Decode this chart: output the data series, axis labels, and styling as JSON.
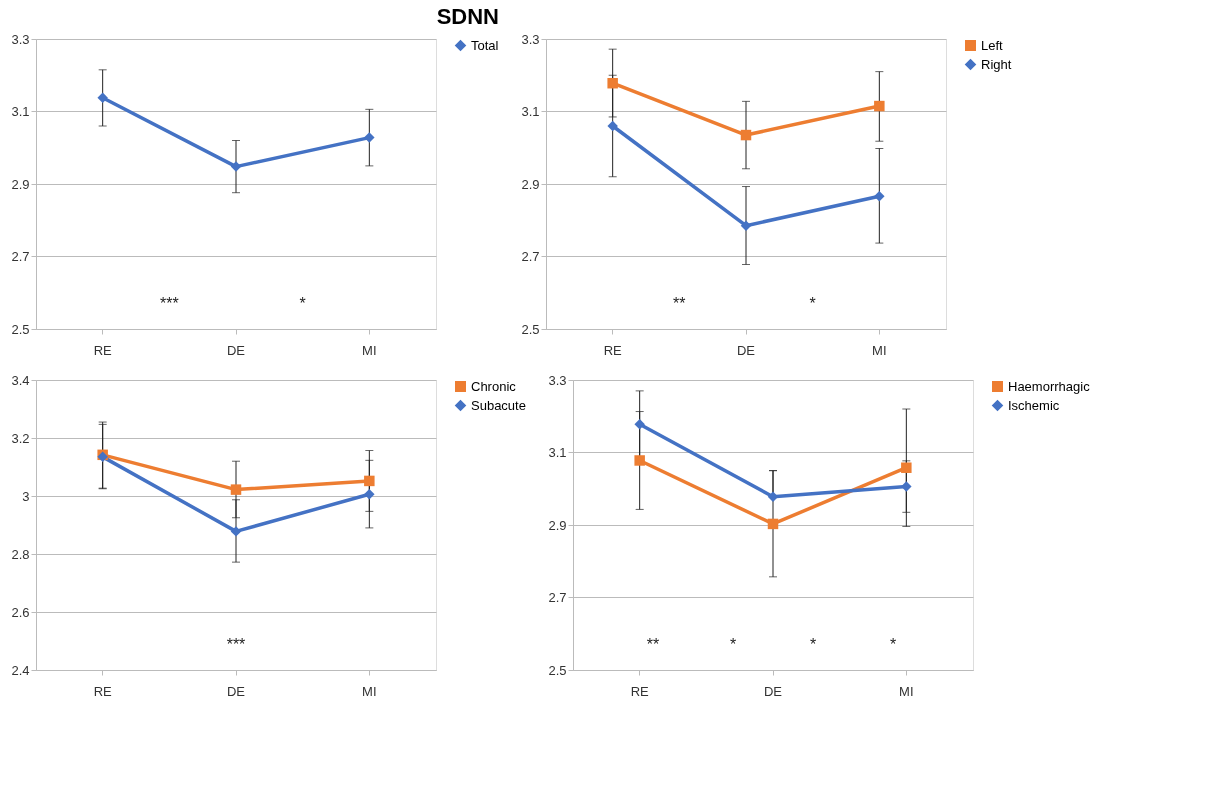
{
  "chart_data": [
    {
      "type": "line",
      "title": "SDNN",
      "categories": [
        "RE",
        "DE",
        "MI"
      ],
      "ylim": [
        2.5,
        3.3
      ],
      "yticks": [
        2.5,
        2.7,
        2.9,
        3.1,
        3.3
      ],
      "grid": "y",
      "legend": "right",
      "line_style": "solid",
      "series": [
        {
          "name": "Total",
          "color": "#4472c4",
          "marker": "diamond",
          "values": [
            3.138,
            2.948,
            3.028
          ],
          "errors": [
            [
              3.06,
              3.215
            ],
            [
              2.876,
              3.02
            ],
            [
              2.95,
              3.106
            ]
          ]
        }
      ],
      "annotations": [
        "***",
        "*"
      ]
    },
    {
      "type": "line",
      "categories": [
        "RE",
        "DE",
        "MI"
      ],
      "ylim": [
        2.5,
        3.3
      ],
      "yticks": [
        2.5,
        2.7,
        2.9,
        3.1,
        3.3
      ],
      "grid": "y",
      "legend": "right",
      "line_style": "solid",
      "series": [
        {
          "name": "Left",
          "color": "#ed7d31",
          "marker": "square",
          "values": [
            3.178,
            3.035,
            3.115
          ],
          "errors": [
            [
              3.085,
              3.272
            ],
            [
              2.942,
              3.128
            ],
            [
              3.018,
              3.21
            ]
          ]
        },
        {
          "name": "Right",
          "color": "#4472c4",
          "marker": "diamond",
          "values": [
            3.06,
            2.785,
            2.866
          ],
          "errors": [
            [
              2.92,
              3.2
            ],
            [
              2.678,
              2.893
            ],
            [
              2.737,
              2.998
            ]
          ]
        }
      ],
      "annotations": [
        "**",
        "*"
      ]
    },
    {
      "type": "line",
      "categories": [
        "RE",
        "DE",
        "MI"
      ],
      "ylim": [
        2.4,
        3.4
      ],
      "yticks": [
        2.4,
        2.6,
        2.8,
        3,
        3.2,
        3.4
      ],
      "grid": "y",
      "legend": "right",
      "line_style": "solid",
      "series": [
        {
          "name": "Chronic",
          "color": "#ed7d31",
          "marker": "square",
          "values": [
            3.142,
            3.022,
            3.052
          ],
          "errors": [
            [
              3.025,
              3.255
            ],
            [
              2.925,
              3.12
            ],
            [
              2.947,
              3.157
            ]
          ]
        },
        {
          "name": "Subacute",
          "color": "#4472c4",
          "marker": "diamond",
          "values": [
            3.135,
            2.878,
            3.006
          ],
          "errors": [
            [
              3.027,
              3.247
            ],
            [
              2.772,
              2.987
            ],
            [
              2.89,
              3.123
            ]
          ]
        }
      ],
      "annotations": [
        "***"
      ]
    },
    {
      "type": "line",
      "categories": [
        "RE",
        "DE",
        "MI"
      ],
      "ylim": [
        2.5,
        3.3
      ],
      "yticks": [
        2.5,
        2.7,
        2.9,
        3.1,
        3.3
      ],
      "grid": "y",
      "legend": "right",
      "line_style": "solid",
      "series": [
        {
          "name": "Haemorrhagic",
          "color": "#ed7d31",
          "marker": "square",
          "values": [
            3.078,
            2.903,
            3.058
          ],
          "errors": [
            [
              2.943,
              3.213
            ],
            [
              2.757,
              3.05
            ],
            [
              2.896,
              3.22
            ]
          ]
        },
        {
          "name": "Ischemic",
          "color": "#4472c4",
          "marker": "diamond",
          "values": [
            3.178,
            2.978,
            3.006
          ],
          "errors": [
            [
              3.086,
              3.27
            ],
            [
              2.978,
              3.05
            ],
            [
              2.935,
              3.077
            ]
          ]
        }
      ],
      "annotations": [
        "**",
        "*",
        "*",
        "*"
      ]
    }
  ]
}
